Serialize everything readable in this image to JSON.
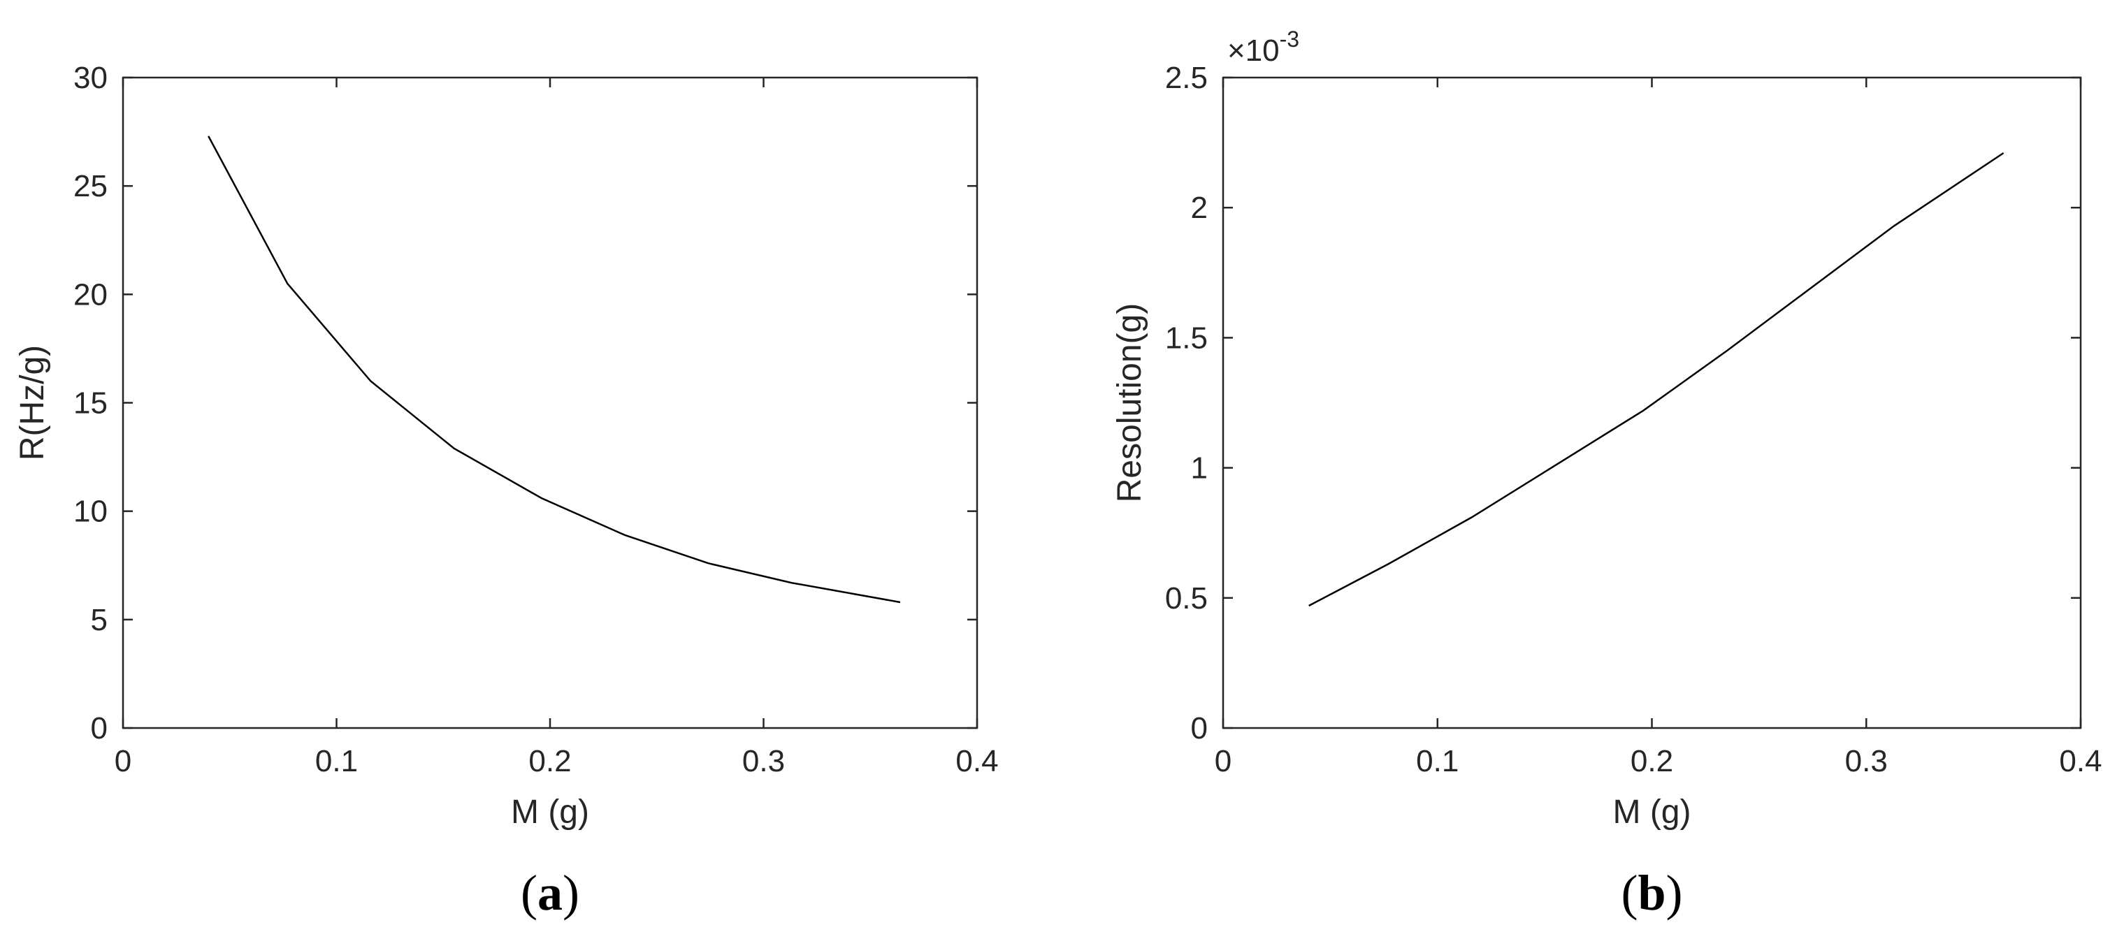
{
  "chart_data": [
    {
      "type": "line",
      "panel_label": "(a)",
      "panel_letter": "a",
      "xlabel": "M (g)",
      "ylabel": "R(Hz/g)",
      "xlim": [
        0,
        0.4
      ],
      "ylim": [
        0,
        30
      ],
      "xticks": [
        0,
        0.1,
        0.2,
        0.3,
        0.4
      ],
      "xtick_labels": [
        "0",
        "0.1",
        "0.2",
        "0.3",
        "0.4"
      ],
      "yticks": [
        0,
        5,
        10,
        15,
        20,
        25,
        30
      ],
      "ytick_labels": [
        "0",
        "5",
        "10",
        "15",
        "20",
        "25",
        "30"
      ],
      "grid": false,
      "line_color": "#000000",
      "x": [
        0.04,
        0.077,
        0.116,
        0.155,
        0.196,
        0.235,
        0.274,
        0.313,
        0.364
      ],
      "y": [
        27.3,
        20.5,
        16.0,
        12.9,
        10.6,
        8.9,
        7.6,
        6.7,
        5.8
      ]
    },
    {
      "type": "line",
      "panel_label": "(b)",
      "panel_letter": "b",
      "xlabel": "M (g)",
      "ylabel": "Resolution(g)",
      "exponent_label": "×10",
      "exponent_power": "-3",
      "xlim": [
        0,
        0.4
      ],
      "ylim": [
        0,
        0.0025
      ],
      "xticks": [
        0,
        0.1,
        0.2,
        0.3,
        0.4
      ],
      "xtick_labels": [
        "0",
        "0.1",
        "0.2",
        "0.3",
        "0.4"
      ],
      "yticks": [
        0,
        0.0005,
        0.001,
        0.0015,
        0.002,
        0.0025
      ],
      "ytick_labels": [
        "0",
        "0.5",
        "1",
        "1.5",
        "2",
        "2.5"
      ],
      "grid": false,
      "line_color": "#000000",
      "x": [
        0.04,
        0.077,
        0.116,
        0.155,
        0.196,
        0.235,
        0.274,
        0.313,
        0.364
      ],
      "y": [
        0.00047,
        0.00063,
        0.00081,
        0.00101,
        0.00122,
        0.00145,
        0.00169,
        0.00193,
        0.00221
      ]
    }
  ]
}
